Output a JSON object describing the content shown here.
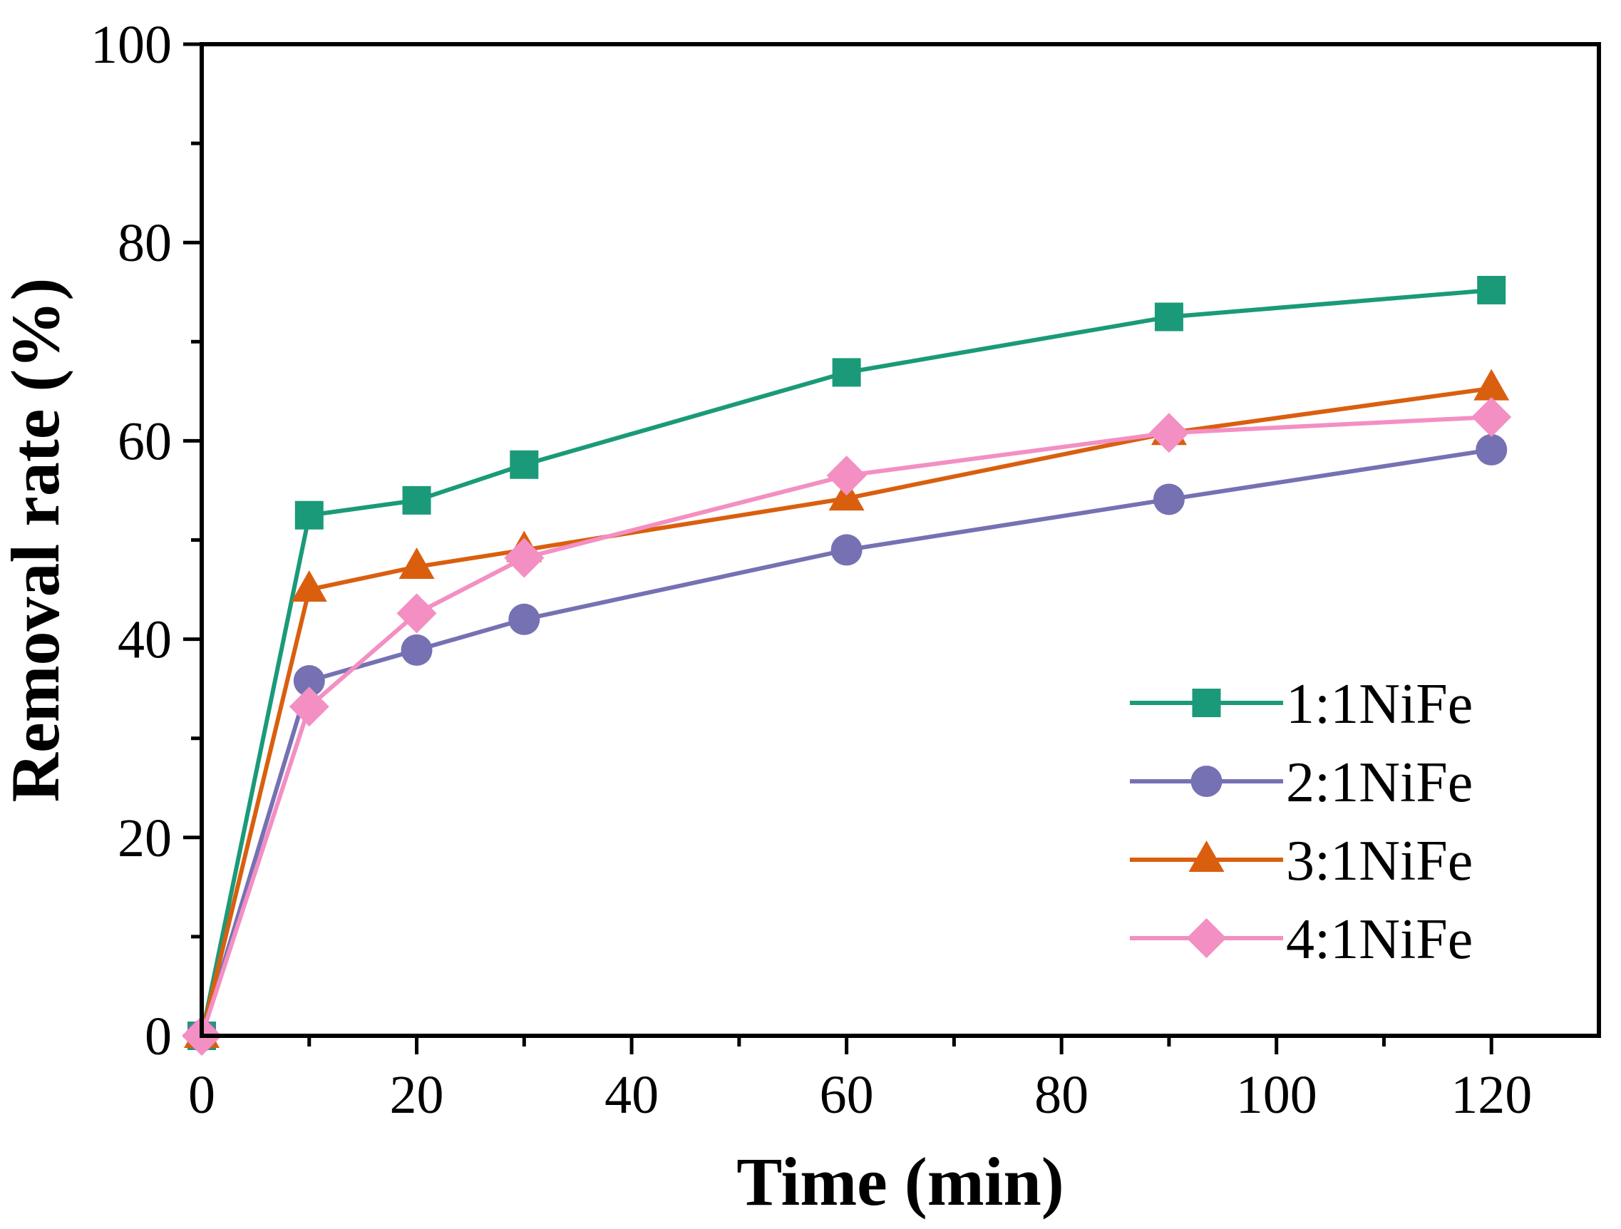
{
  "chart_data": {
    "type": "line",
    "title": "",
    "xlabel": "Time (min)",
    "ylabel": "Removal rate (%)",
    "xlim": [
      0,
      130
    ],
    "ylim": [
      0,
      100
    ],
    "xticks": [
      0,
      20,
      40,
      60,
      80,
      100,
      120
    ],
    "yticks": [
      0,
      20,
      40,
      60,
      80,
      100
    ],
    "xtick_labels": [
      "0",
      "20",
      "40",
      "60",
      "80",
      "100",
      "120"
    ],
    "ytick_labels": [
      "0",
      "20",
      "40",
      "60",
      "80",
      "100"
    ],
    "legend_position": "bottom-right",
    "x": [
      0,
      10,
      20,
      30,
      60,
      90,
      120
    ],
    "series": [
      {
        "name": "1:1NiFe",
        "color": "#1a9a78",
        "marker": "square",
        "values": [
          0,
          52.5,
          54.0,
          57.6,
          66.9,
          72.5,
          75.2
        ]
      },
      {
        "name": "2:1NiFe",
        "color": "#7571b3",
        "marker": "circle",
        "values": [
          0,
          35.8,
          38.9,
          42.0,
          49.0,
          54.1,
          59.1
        ]
      },
      {
        "name": "3:1NiFe",
        "color": "#d95f0f",
        "marker": "triangle",
        "values": [
          0,
          45.0,
          47.3,
          49.0,
          54.2,
          60.8,
          65.3
        ]
      },
      {
        "name": "4:1NiFe",
        "color": "#f38fc3",
        "marker": "diamond",
        "values": [
          0,
          33.2,
          42.6,
          48.2,
          56.5,
          60.8,
          62.4
        ]
      }
    ]
  }
}
